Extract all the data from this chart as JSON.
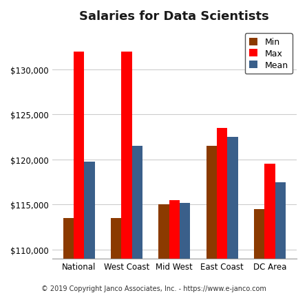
{
  "title": "Salaries for Data Scientists",
  "categories": [
    "National",
    "West Coast",
    "Mid West",
    "East Coast",
    "DC Area"
  ],
  "min_values": [
    113500,
    113500,
    115000,
    121500,
    114500
  ],
  "max_values": [
    132000,
    132000,
    115500,
    123500,
    119500
  ],
  "mean_values": [
    119800,
    121500,
    115200,
    122500,
    117500
  ],
  "min_color": "#8B3A00",
  "max_color": "#FF0000",
  "mean_color": "#3A5F8A",
  "ylim_min": 109000,
  "ylim_max": 134500,
  "yticks": [
    110000,
    115000,
    120000,
    125000,
    130000
  ],
  "bar_width": 0.22,
  "footer": "© 2019 Copyright Janco Associates, Inc. - https://www.e-janco.com",
  "legend_labels": [
    "Min",
    "Max",
    "Mean"
  ],
  "title_fontsize": 13,
  "tick_fontsize": 8.5,
  "footer_fontsize": 7,
  "background_color": "#FFFFFF",
  "grid_color": "#CCCCCC",
  "legend_fontsize": 9
}
